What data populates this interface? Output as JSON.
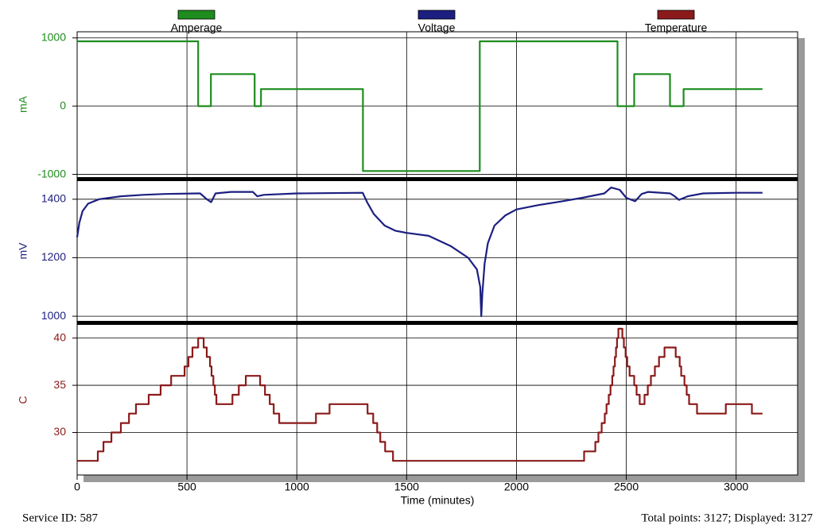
{
  "chart_data": [
    {
      "type": "line",
      "y_label": "mA",
      "ylim": [
        -1040,
        1090
      ],
      "yticks": [
        -1000,
        0,
        1000
      ],
      "xlim": [
        0,
        3280
      ],
      "xticks": [
        0,
        500,
        1000,
        1500,
        2000,
        2500,
        3000
      ],
      "grid": true,
      "x": [
        0,
        551,
        551,
        609,
        609,
        808,
        808,
        837,
        837,
        1301,
        1301,
        1833,
        1833,
        2460,
        2460,
        2536,
        2536,
        2699,
        2699,
        2761,
        2761,
        3120
      ],
      "series": [
        {
          "name": "Amperage",
          "color": "#1e8c1e",
          "values": [
            950,
            950,
            0,
            0,
            470,
            470,
            0,
            0,
            250,
            250,
            -950,
            -950,
            950,
            950,
            0,
            0,
            470,
            470,
            0,
            0,
            250,
            250
          ]
        }
      ]
    },
    {
      "type": "line",
      "y_label": "mV",
      "ylim": [
        984,
        1462
      ],
      "yticks": [
        1000,
        1200,
        1400
      ],
      "xlim": [
        0,
        3280
      ],
      "xticks": [
        0,
        500,
        1000,
        1500,
        2000,
        2500,
        3000
      ],
      "grid": true,
      "x": [
        0,
        10,
        25,
        50,
        100,
        200,
        300,
        400,
        550,
        560,
        590,
        610,
        630,
        700,
        800,
        820,
        850,
        1000,
        1300,
        1320,
        1350,
        1400,
        1450,
        1500,
        1600,
        1700,
        1780,
        1820,
        1835,
        1840,
        1845,
        1855,
        1870,
        1900,
        1950,
        2000,
        2100,
        2200,
        2300,
        2400,
        2431,
        2470,
        2500,
        2540,
        2570,
        2600,
        2700,
        2720,
        2740,
        2780,
        2850,
        3000,
        3120
      ],
      "series": [
        {
          "name": "Voltage",
          "color": "#1c1f80",
          "values": [
            1270,
            1320,
            1360,
            1385,
            1400,
            1410,
            1415,
            1418,
            1420,
            1420,
            1400,
            1390,
            1420,
            1425,
            1425,
            1410,
            1415,
            1420,
            1422,
            1390,
            1350,
            1310,
            1292,
            1285,
            1275,
            1240,
            1200,
            1160,
            1100,
            1000,
            1080,
            1180,
            1250,
            1310,
            1345,
            1365,
            1380,
            1392,
            1405,
            1420,
            1440,
            1432,
            1405,
            1393,
            1418,
            1425,
            1420,
            1410,
            1398,
            1410,
            1420,
            1422,
            1422
          ]
        }
      ]
    },
    {
      "type": "line",
      "y_label": "C",
      "x_label": "Time (minutes)",
      "ylim": [
        25.5,
        41.4
      ],
      "yticks": [
        30,
        35,
        40
      ],
      "xlim": [
        0,
        3280
      ],
      "xticks": [
        0,
        500,
        1000,
        1500,
        2000,
        2500,
        3000
      ],
      "grid": true,
      "x": [
        0,
        94,
        94,
        120,
        120,
        156,
        156,
        199,
        199,
        236,
        236,
        268,
        268,
        326,
        326,
        380,
        380,
        428,
        428,
        489,
        489,
        507,
        507,
        525,
        525,
        551,
        551,
        576,
        576,
        590,
        590,
        605,
        605,
        612,
        612,
        620,
        620,
        627,
        627,
        634,
        634,
        707,
        707,
        736,
        736,
        768,
        768,
        833,
        833,
        855,
        855,
        877,
        877,
        895,
        895,
        920,
        920,
        1087,
        1087,
        1149,
        1149,
        1322,
        1322,
        1348,
        1348,
        1366,
        1366,
        1380,
        1380,
        1402,
        1402,
        1438,
        1438,
        2308,
        2308,
        2359,
        2359,
        2373,
        2373,
        2388,
        2388,
        2402,
        2402,
        2410,
        2410,
        2420,
        2420,
        2428,
        2428,
        2436,
        2436,
        2442,
        2442,
        2448,
        2448,
        2453,
        2453,
        2458,
        2458,
        2464,
        2464,
        2482,
        2482,
        2489,
        2489,
        2497,
        2497,
        2504,
        2504,
        2515,
        2515,
        2536,
        2536,
        2547,
        2547,
        2561,
        2561,
        2583,
        2583,
        2598,
        2598,
        2612,
        2612,
        2630,
        2630,
        2649,
        2649,
        2674,
        2674,
        2725,
        2725,
        2743,
        2743,
        2750,
        2750,
        2765,
        2765,
        2775,
        2775,
        2786,
        2786,
        2822,
        2822,
        2953,
        2953,
        3072,
        3072,
        3120
      ],
      "series": [
        {
          "name": "Temperature",
          "color": "#8b1a1a",
          "values": [
            27,
            27,
            28,
            28,
            29,
            29,
            30,
            30,
            31,
            31,
            32,
            32,
            33,
            33,
            34,
            34,
            35,
            35,
            36,
            36,
            37,
            37,
            38,
            38,
            39,
            39,
            40,
            40,
            39,
            39,
            38,
            38,
            37,
            37,
            36,
            36,
            35,
            35,
            34,
            34,
            33,
            33,
            34,
            34,
            35,
            35,
            36,
            36,
            35,
            35,
            34,
            34,
            33,
            33,
            32,
            32,
            31,
            31,
            32,
            32,
            33,
            33,
            32,
            32,
            31,
            31,
            30,
            30,
            29,
            29,
            28,
            28,
            27,
            27,
            28,
            28,
            29,
            29,
            30,
            30,
            31,
            31,
            32,
            32,
            33,
            33,
            34,
            34,
            35,
            35,
            36,
            36,
            37,
            37,
            38,
            38,
            39,
            39,
            40,
            40,
            41,
            41,
            40,
            40,
            39,
            39,
            38,
            38,
            37,
            37,
            36,
            36,
            35,
            35,
            34,
            34,
            33,
            33,
            34,
            34,
            35,
            35,
            36,
            36,
            37,
            37,
            38,
            38,
            39,
            39,
            38,
            38,
            37,
            37,
            36,
            36,
            35,
            35,
            34,
            34,
            33,
            33,
            32,
            32,
            33,
            33,
            32,
            32
          ]
        }
      ]
    }
  ],
  "footer": {
    "left": "Service ID: 587",
    "right": "Total points: 3127; Displayed: 3127"
  }
}
